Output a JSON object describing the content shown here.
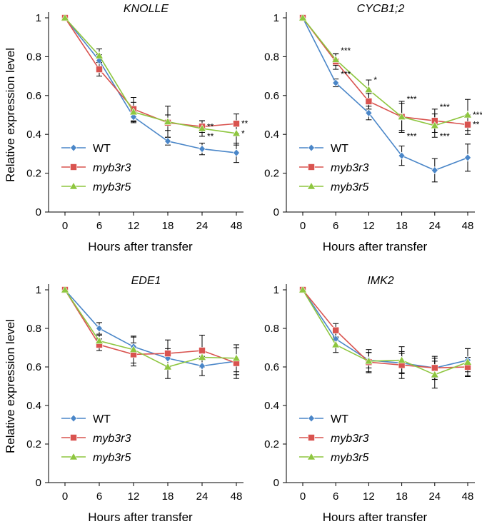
{
  "chart_data": [
    {
      "type": "line",
      "title": "KNOLLE",
      "xlabel": "Hours after transfer",
      "ylabel": "Relative expression level",
      "categories": [
        "0",
        "6",
        "12",
        "18",
        "24",
        "48"
      ],
      "ylim": [
        0,
        1
      ],
      "yticks": [
        "0",
        "0.2",
        "0.4",
        "0.6",
        "0.8",
        "1"
      ],
      "series": [
        {
          "name": "WT",
          "color": "#4a86c8",
          "marker": "diamond",
          "values": [
            1,
            0.78,
            0.49,
            0.365,
            0.325,
            0.305
          ],
          "errors": [
            0,
            0.03,
            0.03,
            0.02,
            0.03,
            0.05
          ]
        },
        {
          "name": "myb3r3",
          "color": "#d9534f",
          "marker": "square",
          "values": [
            1,
            0.735,
            0.53,
            0.46,
            0.44,
            0.455
          ],
          "errors": [
            0,
            0.035,
            0.06,
            0.04,
            0.03,
            0.05
          ]
        },
        {
          "name": "myb3r5",
          "color": "#8ec63f",
          "marker": "triangle",
          "values": [
            1,
            0.805,
            0.515,
            0.465,
            0.43,
            0.405
          ],
          "errors": [
            0,
            0.035,
            0.05,
            0.08,
            0.04,
            0.06
          ]
        }
      ],
      "annotations": [
        {
          "x": "24",
          "y": 0.44,
          "text": "**"
        },
        {
          "x": "24",
          "y": 0.39,
          "text": "**"
        },
        {
          "x": "48",
          "y": 0.455,
          "text": "**"
        },
        {
          "x": "48",
          "y": 0.405,
          "text": "*"
        }
      ],
      "legend_position": "bottom-left"
    },
    {
      "type": "line",
      "title": "CYCB1;2",
      "xlabel": "Hours after transfer",
      "ylabel": "Relative expression level",
      "categories": [
        "0",
        "6",
        "12",
        "18",
        "24",
        "48"
      ],
      "ylim": [
        0,
        1
      ],
      "yticks": [
        "0",
        "0.2",
        "0.4",
        "0.6",
        "0.8",
        "1"
      ],
      "series": [
        {
          "name": "WT",
          "color": "#4a86c8",
          "marker": "diamond",
          "values": [
            1,
            0.665,
            0.51,
            0.29,
            0.215,
            0.28
          ],
          "errors": [
            0,
            0.02,
            0.035,
            0.05,
            0.06,
            0.07
          ]
        },
        {
          "name": "myb3r3",
          "color": "#d9534f",
          "marker": "square",
          "values": [
            1,
            0.775,
            0.57,
            0.49,
            0.47,
            0.45
          ],
          "errors": [
            0,
            0.04,
            0.04,
            0.07,
            0.06,
            0.05
          ]
        },
        {
          "name": "myb3r5",
          "color": "#8ec63f",
          "marker": "triangle",
          "values": [
            1,
            0.785,
            0.63,
            0.49,
            0.445,
            0.5
          ],
          "errors": [
            0,
            0.03,
            0.05,
            0.08,
            0.06,
            0.08
          ]
        }
      ],
      "annotations": [
        {
          "x": "6",
          "y": 0.83,
          "text": "***"
        },
        {
          "x": "6",
          "y": 0.71,
          "text": "***"
        },
        {
          "x": "12",
          "y": 0.68,
          "text": "*"
        },
        {
          "x": "18",
          "y": 0.58,
          "text": "***"
        },
        {
          "x": "18",
          "y": 0.39,
          "text": "***"
        },
        {
          "x": "24",
          "y": 0.54,
          "text": "***"
        },
        {
          "x": "24",
          "y": 0.39,
          "text": "***"
        },
        {
          "x": "48",
          "y": 0.5,
          "text": "***"
        },
        {
          "x": "48",
          "y": 0.45,
          "text": "**"
        }
      ],
      "legend_position": "bottom-left"
    },
    {
      "type": "line",
      "title": "EDE1",
      "xlabel": "Hours after transfer",
      "ylabel": "Relative expression level",
      "categories": [
        "0",
        "6",
        "12",
        "18",
        "24",
        "48"
      ],
      "ylim": [
        0,
        1
      ],
      "yticks": [
        "0",
        "0.2",
        "0.4",
        "0.6",
        "0.8",
        "1"
      ],
      "series": [
        {
          "name": "WT",
          "color": "#4a86c8",
          "marker": "diamond",
          "values": [
            1,
            0.8,
            0.705,
            0.645,
            0.605,
            0.63
          ],
          "errors": [
            0,
            0.03,
            0.05,
            0.05,
            0.05,
            0.07
          ]
        },
        {
          "name": "myb3r3",
          "color": "#d9534f",
          "marker": "square",
          "values": [
            1,
            0.715,
            0.665,
            0.67,
            0.685,
            0.62
          ],
          "errors": [
            0,
            0.03,
            0.06,
            0.07,
            0.08,
            0.08
          ]
        },
        {
          "name": "myb3r5",
          "color": "#8ec63f",
          "marker": "triangle",
          "values": [
            1,
            0.735,
            0.69,
            0.6,
            0.65,
            0.645
          ],
          "errors": [
            0,
            0.03,
            0.07,
            0.06,
            0.05,
            0.07
          ]
        }
      ],
      "annotations": [],
      "legend_position": "bottom-left"
    },
    {
      "type": "line",
      "title": "IMK2",
      "xlabel": "Hours after transfer",
      "ylabel": "Relative expression level",
      "categories": [
        "0",
        "6",
        "12",
        "18",
        "24",
        "48"
      ],
      "ylim": [
        0,
        1
      ],
      "yticks": [
        "0",
        "0.2",
        "0.4",
        "0.6",
        "0.8",
        "1"
      ],
      "series": [
        {
          "name": "WT",
          "color": "#4a86c8",
          "marker": "diamond",
          "values": [
            1,
            0.745,
            0.635,
            0.62,
            0.595,
            0.635
          ],
          "errors": [
            0,
            0.04,
            0.04,
            0.05,
            0.05,
            0.06
          ]
        },
        {
          "name": "myb3r3",
          "color": "#d9534f",
          "marker": "square",
          "values": [
            1,
            0.79,
            0.625,
            0.61,
            0.595,
            0.6
          ],
          "errors": [
            0,
            0.035,
            0.05,
            0.07,
            0.06,
            0.05
          ]
        },
        {
          "name": "myb3r5",
          "color": "#8ec63f",
          "marker": "triangle",
          "values": [
            1,
            0.715,
            0.63,
            0.635,
            0.56,
            0.625
          ],
          "errors": [
            0,
            0.04,
            0.06,
            0.07,
            0.07,
            0.07
          ]
        }
      ],
      "annotations": [],
      "legend_position": "bottom-left"
    }
  ]
}
